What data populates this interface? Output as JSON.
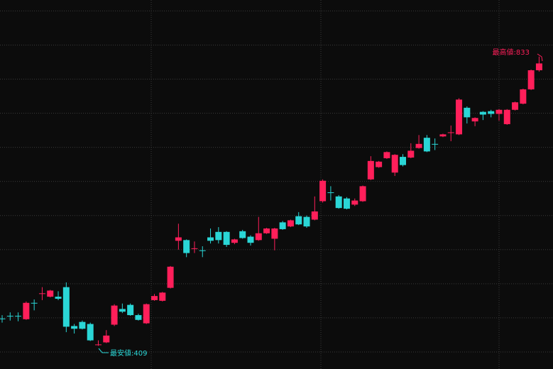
{
  "chart_data": {
    "type": "candlestick",
    "up_color": "#ff1f5a",
    "down_color": "#2ad6d6",
    "ylim": [
      375,
      916
    ],
    "yticks": [
      400,
      450,
      500,
      550,
      600,
      650,
      700,
      750,
      800,
      850,
      900
    ],
    "grid": true,
    "ohlc": [
      [
        449,
        454,
        443,
        448
      ],
      [
        453,
        458,
        446,
        452
      ],
      [
        453,
        458,
        445,
        452
      ],
      [
        448,
        474,
        447,
        472
      ],
      [
        472,
        477,
        461,
        471
      ],
      [
        485,
        495,
        476,
        486
      ],
      [
        481,
        491,
        480,
        490
      ],
      [
        481,
        489,
        476,
        478
      ],
      [
        495,
        502,
        429,
        437
      ],
      [
        438,
        441,
        427,
        434
      ],
      [
        444,
        446,
        433,
        434
      ],
      [
        441,
        443,
        416,
        417
      ],
      [
        410,
        417,
        409,
        411
      ],
      [
        414,
        432,
        413,
        424
      ],
      [
        440,
        470,
        438,
        468
      ],
      [
        463,
        471,
        457,
        459
      ],
      [
        469,
        471,
        453,
        454
      ],
      [
        454,
        456,
        446,
        447
      ],
      [
        442,
        471,
        441,
        470
      ],
      [
        476,
        485,
        475,
        482
      ],
      [
        475,
        488,
        474,
        487
      ],
      [
        494,
        526,
        493,
        525
      ],
      [
        563,
        588,
        550,
        568
      ],
      [
        564,
        565,
        539,
        545
      ],
      [
        551,
        562,
        545,
        552
      ],
      [
        549,
        555,
        539,
        548
      ],
      [
        568,
        581,
        559,
        563
      ],
      [
        576,
        583,
        559,
        564
      ],
      [
        576,
        577,
        554,
        557
      ],
      [
        560,
        566,
        558,
        565
      ],
      [
        577,
        579,
        566,
        567
      ],
      [
        569,
        571,
        556,
        560
      ],
      [
        564,
        598,
        563,
        574
      ],
      [
        574,
        582,
        573,
        581
      ],
      [
        566,
        582,
        549,
        581
      ],
      [
        590,
        592,
        579,
        580
      ],
      [
        584,
        594,
        583,
        593
      ],
      [
        599,
        605,
        586,
        587
      ],
      [
        598,
        600,
        582,
        584
      ],
      [
        594,
        628,
        593,
        606
      ],
      [
        621,
        653,
        619,
        651
      ],
      [
        634,
        643,
        622,
        633
      ],
      [
        628,
        630,
        610,
        611
      ],
      [
        625,
        627,
        609,
        610
      ],
      [
        616,
        625,
        614,
        622
      ],
      [
        621,
        644,
        620,
        643
      ],
      [
        653,
        687,
        652,
        680
      ],
      [
        671,
        680,
        670,
        679
      ],
      [
        684,
        694,
        683,
        693
      ],
      [
        663,
        690,
        658,
        689
      ],
      [
        686,
        690,
        672,
        674
      ],
      [
        685,
        706,
        684,
        695
      ],
      [
        699,
        718,
        698,
        705
      ],
      [
        714,
        718,
        693,
        694
      ],
      [
        705,
        713,
        696,
        704
      ],
      [
        716,
        720,
        715,
        719
      ],
      [
        721,
        732,
        709,
        722
      ],
      [
        719,
        772,
        718,
        770
      ],
      [
        758,
        760,
        735,
        744
      ],
      [
        738,
        744,
        731,
        743
      ],
      [
        752,
        753,
        740,
        748
      ],
      [
        753,
        755,
        744,
        749
      ],
      [
        749,
        756,
        739,
        755
      ],
      [
        734,
        756,
        733,
        755
      ],
      [
        755,
        767,
        754,
        766
      ],
      [
        764,
        786,
        763,
        785
      ],
      [
        785,
        814,
        784,
        813
      ],
      [
        813,
        833,
        811,
        823
      ]
    ],
    "annotations": {
      "high": "最高値:833",
      "low": "最安値:409"
    }
  }
}
